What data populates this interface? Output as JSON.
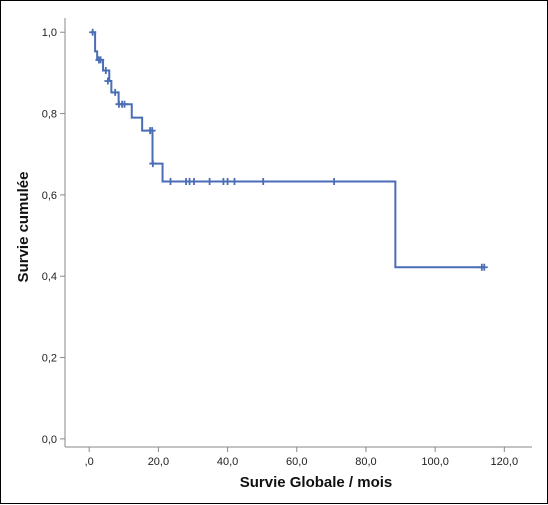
{
  "chart_data": {
    "type": "line",
    "title": "",
    "xlabel": "Survie Globale / mois",
    "ylabel": "Survie cumulée",
    "xlim": [
      -7,
      128
    ],
    "ylim": [
      -0.02,
      1.035
    ],
    "x_ticks": [
      0,
      20,
      40,
      60,
      80,
      100,
      120
    ],
    "x_tick_labels": [
      ",0",
      "20,0",
      "40,0",
      "60,0",
      "80,0",
      "100,0",
      "120,0"
    ],
    "y_ticks": [
      0,
      0.2,
      0.4,
      0.6,
      0.8,
      1.0
    ],
    "y_tick_labels": [
      "0,0",
      "0,2",
      "0,4",
      "0,6",
      "0,8",
      "1,0"
    ],
    "grid": false,
    "legend": "none",
    "series": [
      {
        "color": "#4a6db5",
        "steps": [
          [
            0.5,
            1.0
          ],
          [
            1.7,
            0.953
          ],
          [
            2.3,
            0.932
          ],
          [
            4.0,
            0.906
          ],
          [
            5.8,
            0.88
          ],
          [
            6.4,
            0.852
          ],
          [
            8.5,
            0.823
          ],
          [
            12.3,
            0.79
          ],
          [
            15.3,
            0.758
          ],
          [
            18.3,
            0.677
          ],
          [
            21.2,
            0.633
          ],
          [
            88.5,
            0.422
          ],
          [
            114,
            0.422
          ]
        ],
        "censored": [
          [
            1.0,
            1.0
          ],
          [
            2.8,
            0.932
          ],
          [
            3.3,
            0.932
          ],
          [
            4.8,
            0.906
          ],
          [
            5.4,
            0.88
          ],
          [
            7.5,
            0.852
          ],
          [
            8.6,
            0.823
          ],
          [
            9.5,
            0.823
          ],
          [
            10.2,
            0.823
          ],
          [
            17.6,
            0.758
          ],
          [
            18.2,
            0.758
          ],
          [
            18.4,
            0.677
          ],
          [
            23.5,
            0.633
          ],
          [
            28.0,
            0.633
          ],
          [
            29.0,
            0.633
          ],
          [
            30.3,
            0.633
          ],
          [
            34.8,
            0.633
          ],
          [
            38.8,
            0.633
          ],
          [
            40.0,
            0.633
          ],
          [
            42.0,
            0.633
          ],
          [
            50.3,
            0.633
          ],
          [
            70.8,
            0.633
          ],
          [
            113.5,
            0.422
          ],
          [
            114.2,
            0.422
          ]
        ]
      }
    ]
  }
}
